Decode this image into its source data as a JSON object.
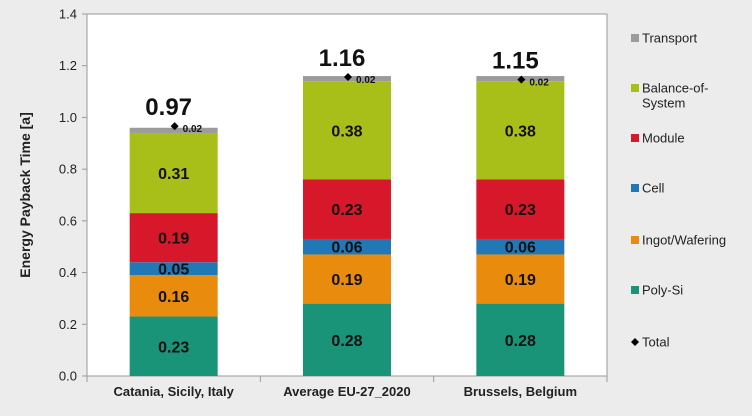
{
  "chart_data": {
    "type": "bar",
    "stacked": true,
    "categories": [
      "Catania, Sicily, Italy",
      "Average EU-27_2020",
      "Brussels, Belgium"
    ],
    "ylabel": "Energy Payback Time [a]",
    "ylim": [
      0,
      1.4
    ],
    "yticks": [
      "0.0",
      "0.2",
      "0.4",
      "0.6",
      "0.8",
      "1.0",
      "1.2",
      "1.4"
    ],
    "grid": false,
    "legend_position": "right",
    "series": [
      {
        "name": "Poly-Si",
        "color": "#1a9479",
        "values": [
          0.23,
          0.28,
          0.28
        ],
        "labels": [
          "0.23",
          "0.28",
          "0.28"
        ]
      },
      {
        "name": "Ingot/Wafering",
        "color": "#e98c0e",
        "values": [
          0.16,
          0.19,
          0.19
        ],
        "labels": [
          "0.16",
          "0.19",
          "0.19"
        ]
      },
      {
        "name": "Cell",
        "color": "#2178b7",
        "values": [
          0.05,
          0.06,
          0.06
        ],
        "labels": [
          "0.05",
          "0.06",
          "0.06"
        ]
      },
      {
        "name": "Module",
        "color": "#d7172a",
        "values": [
          0.19,
          0.23,
          0.23
        ],
        "labels": [
          "0.19",
          "0.23",
          "0.23"
        ]
      },
      {
        "name": "Balance-of-System",
        "color": "#a9bf19",
        "values": [
          0.31,
          0.38,
          0.38
        ],
        "labels": [
          "0.31",
          "0.38",
          "0.38"
        ]
      },
      {
        "name": "Transport",
        "color": "#9b9b9b",
        "values": [
          0.02,
          0.02,
          0.02
        ],
        "labels": [
          "0.02",
          "0.02",
          "0.02"
        ]
      }
    ],
    "totals": {
      "name": "Total",
      "values": [
        0.97,
        1.16,
        1.15
      ],
      "labels": [
        "0.97",
        "1.16",
        "1.15"
      ]
    },
    "legend": [
      {
        "name": "Transport",
        "lines": [
          "Transport"
        ],
        "color": "#9b9b9b",
        "marker": "square"
      },
      {
        "name": "Balance-of-System",
        "lines": [
          "Balance-of-",
          "System"
        ],
        "color": "#a9bf19",
        "marker": "square"
      },
      {
        "name": "Module",
        "lines": [
          "Module"
        ],
        "color": "#d7172a",
        "marker": "square"
      },
      {
        "name": "Cell",
        "lines": [
          "Cell"
        ],
        "color": "#2178b7",
        "marker": "square"
      },
      {
        "name": "Ingot/Wafering",
        "lines": [
          "Ingot/Wafering"
        ],
        "color": "#e98c0e",
        "marker": "square"
      },
      {
        "name": "Poly-Si",
        "lines": [
          "Poly-Si"
        ],
        "color": "#1a9479",
        "marker": "square"
      },
      {
        "name": "Total",
        "lines": [
          "Total"
        ],
        "color": "#000000",
        "marker": "diamond"
      }
    ]
  }
}
